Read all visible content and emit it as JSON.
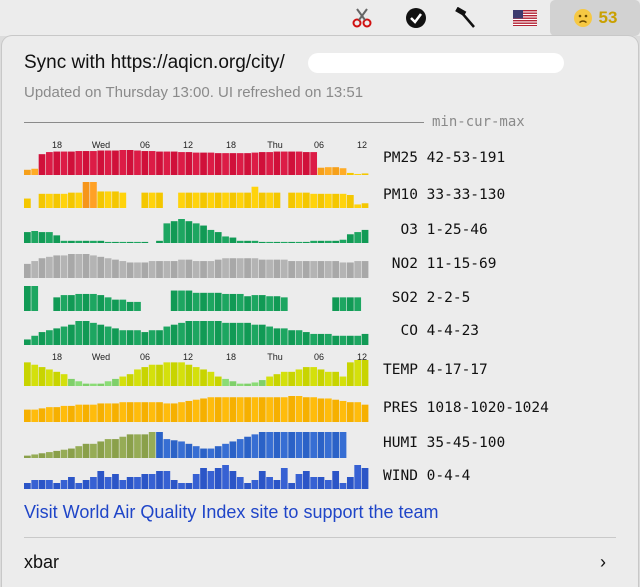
{
  "menubar": {
    "icons": [
      "scissors-icon",
      "checkmark-circle-icon",
      "hammer-icon",
      "us-flag-icon",
      "sad-face-icon"
    ],
    "aqi_value": "53",
    "aqi_color": "#c9a000"
  },
  "header": {
    "title": "Sync with https://aqicn.org/city/",
    "subtitle": "Updated on Thursday 13:00.   UI refreshed on 13:51"
  },
  "legend_label": "min-cur-max",
  "tick_labels": [
    "18",
    "Wed",
    "06",
    "12",
    "18",
    "Thu",
    "06",
    "12"
  ],
  "chart_data": [
    {
      "type": "bar",
      "name": "PM25",
      "label": "PM25 42-53-191",
      "color": "#d0103a",
      "values": [
        10,
        12,
        40,
        44,
        45,
        45,
        45,
        46,
        46,
        46,
        47,
        47,
        47,
        48,
        48,
        47,
        46,
        46,
        45,
        45,
        45,
        44,
        44,
        43,
        43,
        43,
        42,
        42,
        42,
        42,
        42,
        43,
        44,
        44,
        45,
        45,
        45,
        45,
        44,
        44,
        14,
        15,
        15,
        13,
        4,
        2,
        3
      ]
    },
    {
      "type": "bar",
      "name": "PM10",
      "label": "PM10 33-33-130",
      "color": "#f4c700",
      "values": [
        8,
        0,
        12,
        12,
        12,
        12,
        13,
        13,
        22,
        22,
        14,
        14,
        14,
        13,
        0,
        0,
        13,
        13,
        13,
        0,
        0,
        13,
        13,
        13,
        13,
        13,
        13,
        13,
        13,
        13,
        13,
        18,
        13,
        13,
        13,
        0,
        13,
        13,
        13,
        12,
        12,
        12,
        12,
        12,
        11,
        3,
        4
      ]
    },
    {
      "type": "bar",
      "name": "O3",
      "label": "O3 1-25-46",
      "color": "#119a55",
      "values": [
        10,
        11,
        10,
        10,
        7,
        2,
        2,
        2,
        2,
        2,
        2,
        1,
        1,
        1,
        1,
        1,
        1,
        0,
        2,
        18,
        20,
        22,
        20,
        18,
        16,
        12,
        10,
        6,
        5,
        2,
        2,
        2,
        1,
        1,
        1,
        1,
        1,
        1,
        1,
        2,
        2,
        2,
        2,
        3,
        8,
        10,
        12
      ]
    },
    {
      "type": "bar",
      "name": "NO2",
      "label": "NO2 11-15-69",
      "color": "#a8a8a8",
      "values": [
        10,
        12,
        14,
        15,
        16,
        16,
        17,
        17,
        17,
        16,
        15,
        14,
        13,
        12,
        11,
        11,
        11,
        12,
        12,
        12,
        12,
        13,
        13,
        12,
        12,
        12,
        13,
        14,
        14,
        14,
        14,
        14,
        13,
        13,
        13,
        13,
        12,
        12,
        12,
        12,
        12,
        12,
        12,
        11,
        11,
        12,
        12
      ]
    },
    {
      "type": "bar",
      "name": "SO2",
      "label": "SO2 2-2-5",
      "color": "#119a55",
      "values": [
        22,
        22,
        0,
        0,
        12,
        14,
        14,
        15,
        15,
        15,
        14,
        12,
        10,
        10,
        8,
        8,
        0,
        0,
        0,
        0,
        18,
        18,
        18,
        16,
        16,
        16,
        16,
        15,
        15,
        15,
        13,
        14,
        14,
        13,
        13,
        12,
        0,
        0,
        0,
        0,
        0,
        0,
        12,
        12,
        12,
        12,
        0
      ]
    },
    {
      "type": "bar",
      "name": "CO",
      "label": "CO 4-4-23",
      "color": "#119a55",
      "values": [
        3,
        5,
        7,
        8,
        9,
        10,
        11,
        13,
        13,
        12,
        11,
        10,
        9,
        8,
        8,
        8,
        7,
        8,
        8,
        10,
        11,
        12,
        13,
        13,
        13,
        13,
        13,
        12,
        12,
        12,
        12,
        11,
        11,
        10,
        9,
        9,
        8,
        8,
        7,
        6,
        6,
        6,
        5,
        5,
        5,
        5,
        6
      ]
    },
    {
      "type": "bar",
      "name": "TEMP",
      "label": "TEMP 4-17-17",
      "color": "#c8d400",
      "values": [
        20,
        18,
        16,
        14,
        12,
        10,
        6,
        4,
        2,
        2,
        2,
        4,
        6,
        8,
        10,
        14,
        16,
        18,
        18,
        20,
        20,
        20,
        18,
        16,
        14,
        12,
        8,
        6,
        4,
        2,
        2,
        3,
        5,
        8,
        10,
        12,
        12,
        14,
        16,
        16,
        14,
        12,
        12,
        8,
        20,
        22,
        22
      ]
    },
    {
      "type": "bar",
      "name": "PRES",
      "label": "PRES 1018-1020-1024",
      "color": "#f6b000",
      "values": [
        10,
        10,
        11,
        12,
        12,
        13,
        13,
        14,
        14,
        14,
        15,
        15,
        15,
        16,
        16,
        16,
        16,
        16,
        16,
        15,
        15,
        16,
        17,
        18,
        19,
        20,
        20,
        20,
        20,
        20,
        20,
        20,
        20,
        20,
        20,
        20,
        21,
        21,
        20,
        20,
        19,
        19,
        18,
        17,
        16,
        16,
        14
      ]
    },
    {
      "type": "bar",
      "name": "HUMI",
      "label": "HUMI 35-45-100",
      "color": "#2b62c7",
      "values": [
        2,
        3,
        4,
        5,
        6,
        7,
        8,
        10,
        12,
        12,
        14,
        16,
        16,
        18,
        20,
        20,
        20,
        22,
        22,
        16,
        15,
        14,
        12,
        10,
        8,
        8,
        10,
        12,
        14,
        16,
        18,
        20,
        22,
        22,
        22,
        22,
        22,
        22,
        22,
        22,
        22,
        22,
        22,
        22,
        0,
        0,
        0
      ]
    },
    {
      "type": "bar",
      "name": "WIND",
      "label": "WIND 0-4-4",
      "color": "#2b55c7",
      "values": [
        2,
        3,
        3,
        3,
        2,
        3,
        4,
        2,
        3,
        4,
        6,
        4,
        5,
        3,
        4,
        4,
        5,
        5,
        6,
        6,
        3,
        2,
        2,
        5,
        7,
        6,
        7,
        8,
        6,
        4,
        2,
        3,
        6,
        4,
        3,
        7,
        2,
        5,
        6,
        4,
        4,
        3,
        6,
        2,
        4,
        8,
        7
      ]
    }
  ],
  "footer": {
    "link_text": "Visit World Air Quality Index site to support the team",
    "xbar_label": "xbar",
    "chevron": "›"
  }
}
